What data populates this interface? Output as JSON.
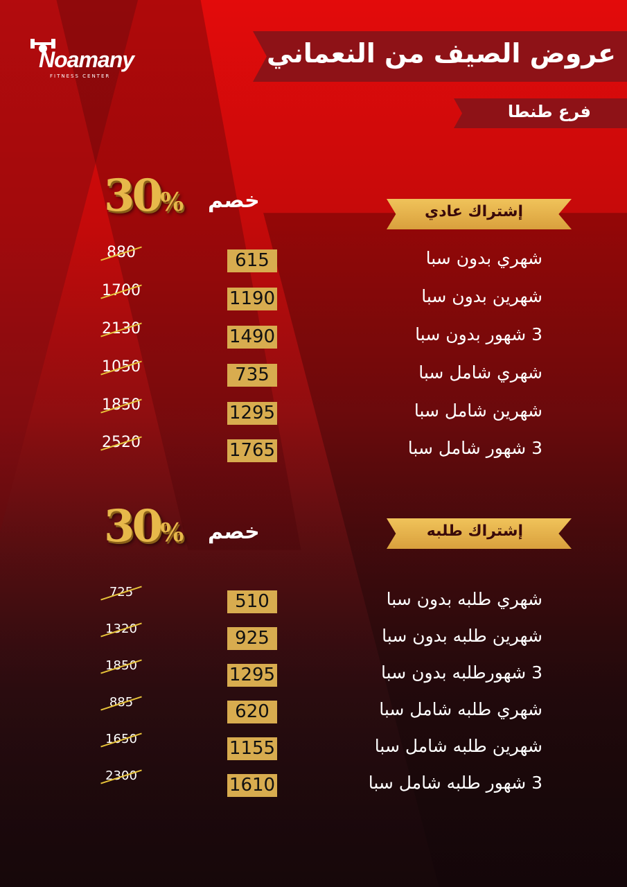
{
  "logo": {
    "name": "Noamany",
    "tagline": "FITNESS CENTER"
  },
  "header": {
    "title": "عروض الصيف من النعماني",
    "branch": "فرع طنطا"
  },
  "colors": {
    "red": "#e30b0b",
    "banner": "#8e1217",
    "gold": "#d8ac4f"
  },
  "sections": [
    {
      "title": "إشتراك عادي",
      "discount_value": "30",
      "discount_symbol": "%",
      "discount_label": "خصم",
      "rows": [
        {
          "label": "شهري بدون سبا",
          "price": "615",
          "old_price": "880"
        },
        {
          "label": "شهرين بدون سبا",
          "price": "1190",
          "old_price": "1700"
        },
        {
          "label": "3 شهور بدون سبا",
          "price": "1490",
          "old_price": "2130"
        },
        {
          "label": "شهري شامل سبا",
          "price": "735",
          "old_price": "1050"
        },
        {
          "label": "شهرين شامل سبا",
          "price": "1295",
          "old_price": "1850"
        },
        {
          "label": "3 شهور شامل سبا",
          "price": "1765",
          "old_price": "2520"
        }
      ]
    },
    {
      "title": "إشتراك طلبه",
      "discount_value": "30",
      "discount_symbol": "%",
      "discount_label": "خصم",
      "rows": [
        {
          "label": "شهري طلبه بدون سبا",
          "price": "510",
          "old_price": "725"
        },
        {
          "label": "شهرين طلبه بدون سبا",
          "price": "925",
          "old_price": "1320"
        },
        {
          "label": "3 شهورطلبه بدون سبا",
          "price": "1295",
          "old_price": "1850"
        },
        {
          "label": "شهري طلبه شامل سبا",
          "price": "620",
          "old_price": "885"
        },
        {
          "label": "شهرين طلبه شامل سبا",
          "price": "1155",
          "old_price": "1650"
        },
        {
          "label": "3 شهور طلبه شامل سبا",
          "price": "1610",
          "old_price": "2300"
        }
      ]
    }
  ]
}
